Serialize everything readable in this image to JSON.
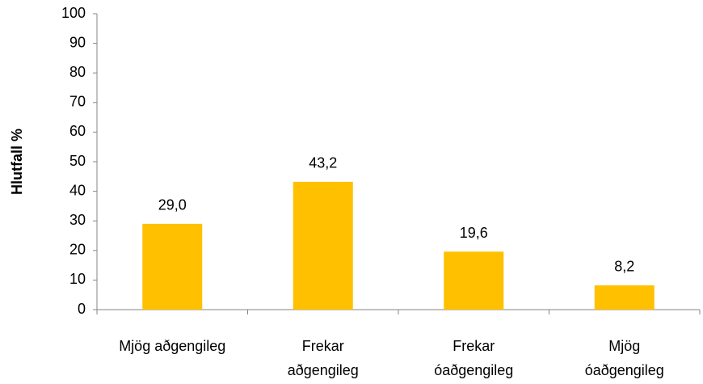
{
  "chart_data": {
    "type": "bar",
    "ylabel": "Hlutfall %",
    "categories": [
      [
        "Mjög aðgengileg"
      ],
      [
        "Frekar",
        "aðgengileg"
      ],
      [
        "Frekar",
        "óaðgengileg"
      ],
      [
        "Mjög",
        "óaðgengileg"
      ]
    ],
    "values": [
      29.0,
      43.2,
      19.6,
      8.2
    ],
    "value_labels": [
      "29,0",
      "43,2",
      "19,6",
      "8,2"
    ],
    "color": "#ffc000",
    "ylim": [
      0,
      100
    ],
    "yticks": [
      0,
      10,
      20,
      30,
      40,
      50,
      60,
      70,
      80,
      90,
      100
    ],
    "grid": false
  }
}
